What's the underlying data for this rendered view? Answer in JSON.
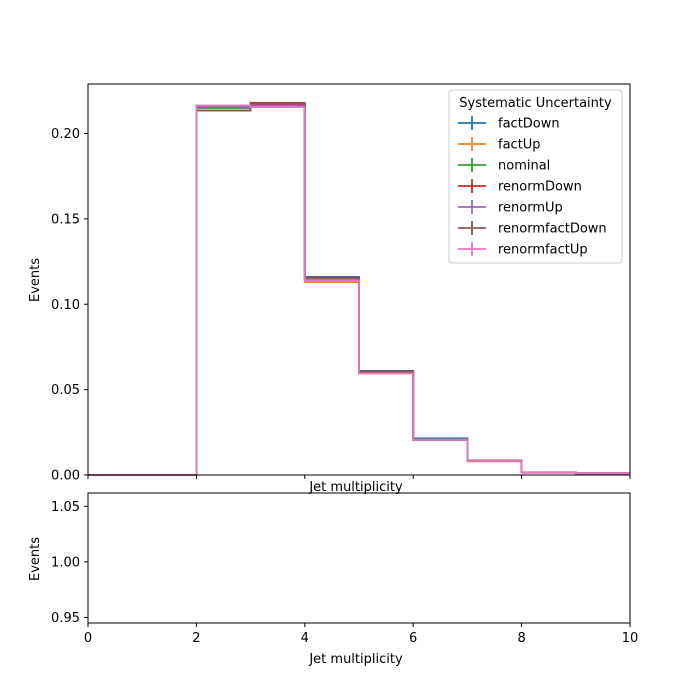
{
  "chart_data": [
    {
      "type": "line",
      "drawstyle": "steps-post",
      "xlabel": "Jet multiplicity",
      "ylabel": "Events",
      "xlim": [
        0,
        10
      ],
      "ylim": [
        0,
        0.229
      ],
      "yticks": [
        0.0,
        0.05,
        0.1,
        0.15,
        0.2
      ],
      "ytick_labels": [
        "0.00",
        "0.05",
        "0.10",
        "0.15",
        "0.20"
      ],
      "grid": false,
      "legend": {
        "title": "Systematic Uncertainty",
        "placement": "top-right"
      },
      "bin_edges": [
        0,
        1,
        2,
        3,
        4,
        5,
        6,
        7,
        8,
        9,
        10
      ],
      "series": [
        {
          "name": "factDown",
          "color": "#1f77b4",
          "values": [
            0,
            0,
            0.215,
            0.216,
            0.116,
            0.061,
            0.0215,
            0.0085,
            0.0015,
            0.001
          ]
        },
        {
          "name": "factUp",
          "color": "#ff7f0e",
          "values": [
            0,
            0,
            0.216,
            0.216,
            0.113,
            0.0595,
            0.0205,
            0.008,
            0.0013,
            0.001
          ]
        },
        {
          "name": "nominal",
          "color": "#2ca02c",
          "values": [
            0,
            0,
            0.215,
            0.2165,
            0.1145,
            0.0605,
            0.021,
            0.0083,
            0.0014,
            0.001
          ]
        },
        {
          "name": "renormDown",
          "color": "#d62728",
          "values": [
            0,
            0,
            0.2135,
            0.2175,
            0.1155,
            0.0605,
            0.0205,
            0.0084,
            0.0014,
            0.001
          ]
        },
        {
          "name": "renormUp",
          "color": "#9467bd",
          "values": [
            0,
            0,
            0.2155,
            0.2165,
            0.1145,
            0.06,
            0.021,
            0.0083,
            0.0014,
            0.001
          ]
        },
        {
          "name": "renormfactDown",
          "color": "#8c564b",
          "values": [
            0,
            0,
            0.2135,
            0.218,
            0.1155,
            0.0605,
            0.0205,
            0.0084,
            0.0014,
            0.001
          ]
        },
        {
          "name": "renormfactUp",
          "color": "#e377c2",
          "values": [
            0,
            0,
            0.2165,
            0.2155,
            0.114,
            0.0595,
            0.0205,
            0.0082,
            0.0013,
            0.001
          ]
        }
      ]
    },
    {
      "type": "line",
      "xlabel": "Jet multiplicity",
      "ylabel": "Events",
      "xlim": [
        0,
        10
      ],
      "ylim": [
        0.945,
        1.062
      ],
      "xticks": [
        0,
        2,
        4,
        6,
        8,
        10
      ],
      "xtick_labels": [
        "0",
        "2",
        "4",
        "6",
        "8",
        "10"
      ],
      "yticks": [
        0.95,
        1.0,
        1.05
      ],
      "ytick_labels": [
        "0.95",
        "1.00",
        "1.05"
      ],
      "grid": false,
      "series": []
    }
  ]
}
